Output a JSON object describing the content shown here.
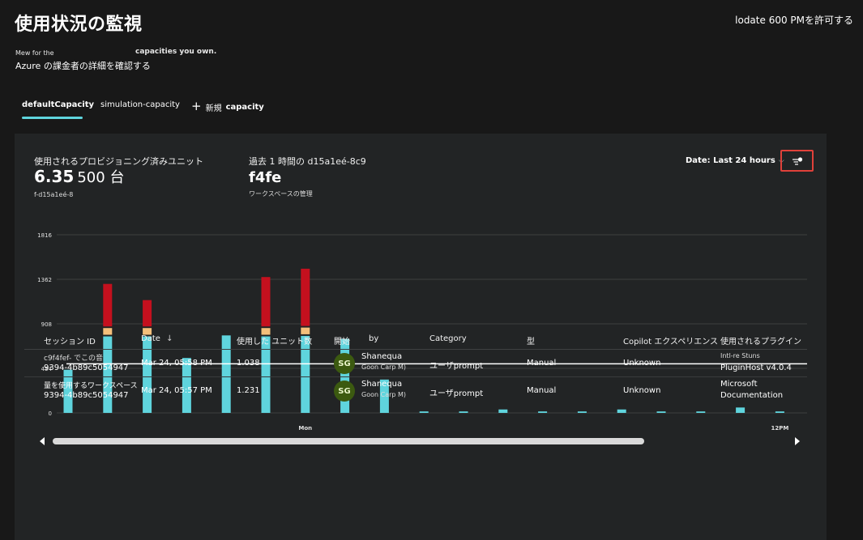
{
  "header": {
    "title": "使用状況の監視",
    "top_right": "lodate 600 PMを許可する",
    "sub_line1_small": "Mew for the",
    "sub_line1_bold": "capacities you own.",
    "sub_line2": "Azure の課金者の詳細を確認する"
  },
  "tabs": [
    {
      "label": "defaultCapacity"
    },
    {
      "label": "simulation-capacity"
    },
    {
      "label": "新規",
      "bold": "capacity"
    }
  ],
  "kpis": [
    {
      "label": "使用されるプロビジョニング済みユニット",
      "value": "6.35",
      "unit": "500 台",
      "sub": "f-d15a1eé-8"
    },
    {
      "label": "過去 1 時間の d15a1eé-8c9",
      "value": "f4fe",
      "sub": "ワークスペースの管理"
    }
  ],
  "date_filter": {
    "label": "Date: Last 24 hours"
  },
  "chart_data": {
    "type": "bar",
    "stacked": true,
    "y_ticks": [
      "1816",
      "1362",
      "908",
      "454",
      "0"
    ],
    "ylim": [
      0,
      1816
    ],
    "x_labels": [
      {
        "index": 6,
        "label": "Mon"
      },
      {
        "index": 18,
        "label": "12PM"
      }
    ],
    "threshold": 500,
    "series": [
      {
        "color": "#5fd4dd",
        "values": [
          440,
          780,
          780,
          560,
          790,
          780,
          785,
          755,
          340,
          15,
          15,
          35,
          15,
          15,
          35,
          15,
          15,
          55,
          15
        ]
      },
      {
        "color": "#f4bf7b",
        "values": [
          0,
          85,
          85,
          0,
          0,
          85,
          85,
          0,
          0,
          0,
          0,
          0,
          0,
          0,
          0,
          0,
          0,
          0,
          0
        ]
      },
      {
        "color": "#c4101e",
        "values": [
          0,
          450,
          285,
          0,
          0,
          520,
          600,
          0,
          0,
          0,
          0,
          0,
          0,
          0,
          0,
          0,
          0,
          0,
          0
        ]
      }
    ],
    "grid": true
  },
  "table": {
    "columns": [
      "セッション ID",
      "Date",
      "使用した ユニット数",
      "開始",
      "by",
      "Category",
      "型",
      "Copilot エクスペリエンス",
      "使用されるプラグイン"
    ],
    "rows": [
      {
        "session_l1": "c9f4fef- でこの音",
        "session_l2": "9394-4b89c5054947",
        "date": "Mar 24, 05:58 PM",
        "units": "1.038",
        "initials": "SG",
        "user_l1": "Shanequa",
        "user_l2": "Goon Carp M)",
        "category": "ユーザprompt",
        "type": "Manual",
        "experience": "Unknown",
        "plugin_l1": "Intl-re Stuns",
        "plugin_l2": "PluginHost v4.0.4"
      },
      {
        "session_l1": "量を使用するワークスペース",
        "session_l2": "9394-4b89c5054947",
        "date": "Mar 24, 05:57 PM",
        "units": "1.231",
        "initials": "SG",
        "user_l1": "Shanequa",
        "user_l2": "Goon Carp M)",
        "category": "ユーザprompt",
        "type": "Manual",
        "experience": "Unknown",
        "plugin_l1": "Microsoft",
        "plugin_l2": "Documentation"
      }
    ]
  },
  "icons": {
    "sort": "arrow-down-icon",
    "filter": "filter-settings-icon",
    "add": "plus-icon"
  }
}
